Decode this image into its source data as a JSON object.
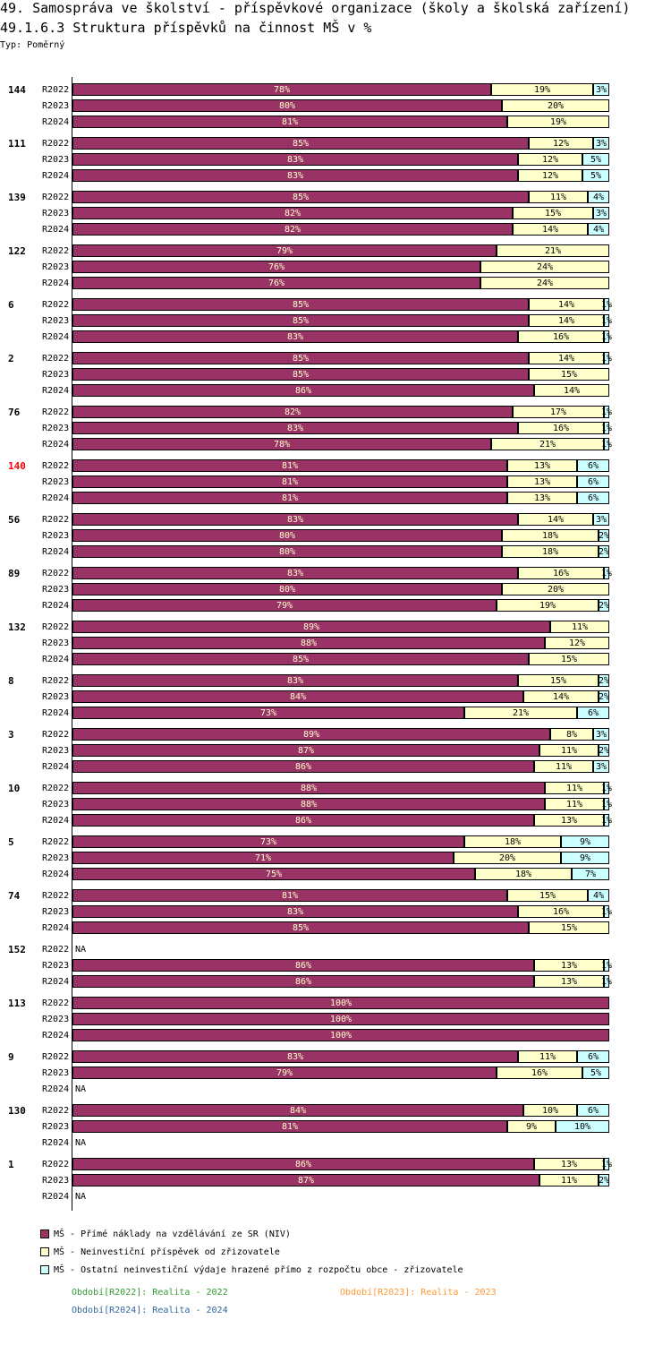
{
  "title": "49. Samospráva ve školství - příspěvkové organizace (školy a školská zařízení)",
  "subtitle": "49.1.6.3 Struktura příspěvků na činnost MŠ v %",
  "type_label": "Typ: Poměrný",
  "colors": {
    "s1": "#993366",
    "s2": "#ffffcc",
    "s3": "#ccffff",
    "highlight": "#ff0000"
  },
  "chart_data": {
    "type": "bar",
    "orientation": "horizontal",
    "stacked": true,
    "unit": "%",
    "xlim": [
      0,
      100
    ],
    "series_names": [
      "MŠ - Přímé náklady na vzdělávání ze SR (NIV)",
      "MŠ - Neinvestiční příspěvek od zřizovatele",
      "MŠ - Ostatní neinvestiční výdaje hrazené přímo z rozpočtu obce - zřizovatele"
    ],
    "groups": [
      {
        "label": "144",
        "rows": [
          [
            "R2022",
            78,
            19,
            3
          ],
          [
            "R2023",
            80,
            20,
            0
          ],
          [
            "R2024",
            81,
            19,
            0
          ]
        ]
      },
      {
        "label": "111",
        "rows": [
          [
            "R2022",
            85,
            12,
            3
          ],
          [
            "R2023",
            83,
            12,
            5
          ],
          [
            "R2024",
            83,
            12,
            5
          ]
        ]
      },
      {
        "label": "139",
        "rows": [
          [
            "R2022",
            85,
            11,
            4
          ],
          [
            "R2023",
            82,
            15,
            3
          ],
          [
            "R2024",
            82,
            14,
            4
          ]
        ]
      },
      {
        "label": "122",
        "rows": [
          [
            "R2022",
            79,
            21,
            0
          ],
          [
            "R2023",
            76,
            24,
            0
          ],
          [
            "R2024",
            76,
            24,
            0
          ]
        ]
      },
      {
        "label": "6",
        "rows": [
          [
            "R2022",
            85,
            14,
            1
          ],
          [
            "R2023",
            85,
            14,
            1
          ],
          [
            "R2024",
            83,
            16,
            1
          ]
        ]
      },
      {
        "label": "2",
        "rows": [
          [
            "R2022",
            85,
            14,
            1
          ],
          [
            "R2023",
            85,
            15,
            0
          ],
          [
            "R2024",
            86,
            14,
            0
          ]
        ]
      },
      {
        "label": "76",
        "rows": [
          [
            "R2022",
            82,
            17,
            1
          ],
          [
            "R2023",
            83,
            16,
            1
          ],
          [
            "R2024",
            78,
            21,
            1
          ]
        ]
      },
      {
        "label": "140",
        "highlight": true,
        "rows": [
          [
            "R2022",
            81,
            13,
            6
          ],
          [
            "R2023",
            81,
            13,
            6
          ],
          [
            "R2024",
            81,
            13,
            6
          ]
        ]
      },
      {
        "label": "56",
        "rows": [
          [
            "R2022",
            83,
            14,
            3
          ],
          [
            "R2023",
            80,
            18,
            2
          ],
          [
            "R2024",
            80,
            18,
            2
          ]
        ]
      },
      {
        "label": "89",
        "rows": [
          [
            "R2022",
            83,
            16,
            1
          ],
          [
            "R2023",
            80,
            20,
            0
          ],
          [
            "R2024",
            79,
            19,
            2
          ]
        ]
      },
      {
        "label": "132",
        "rows": [
          [
            "R2022",
            89,
            11,
            0
          ],
          [
            "R2023",
            88,
            12,
            0
          ],
          [
            "R2024",
            85,
            15,
            0
          ]
        ]
      },
      {
        "label": "8",
        "rows": [
          [
            "R2022",
            83,
            15,
            2
          ],
          [
            "R2023",
            84,
            14,
            2
          ],
          [
            "R2024",
            73,
            21,
            6
          ]
        ]
      },
      {
        "label": "3",
        "rows": [
          [
            "R2022",
            89,
            8,
            3
          ],
          [
            "R2023",
            87,
            11,
            2
          ],
          [
            "R2024",
            86,
            11,
            3
          ]
        ]
      },
      {
        "label": "10",
        "rows": [
          [
            "R2022",
            88,
            11,
            1
          ],
          [
            "R2023",
            88,
            11,
            1
          ],
          [
            "R2024",
            86,
            13,
            1
          ]
        ]
      },
      {
        "label": "5",
        "rows": [
          [
            "R2022",
            73,
            18,
            9
          ],
          [
            "R2023",
            71,
            20,
            9
          ],
          [
            "R2024",
            75,
            18,
            7
          ]
        ]
      },
      {
        "label": "74",
        "rows": [
          [
            "R2022",
            81,
            15,
            4
          ],
          [
            "R2023",
            83,
            16,
            1
          ],
          [
            "R2024",
            85,
            15,
            0
          ]
        ]
      },
      {
        "label": "152",
        "rows": [
          [
            "R2022",
            null,
            null,
            null
          ],
          [
            "R2023",
            86,
            13,
            1
          ],
          [
            "R2024",
            86,
            13,
            1
          ]
        ]
      },
      {
        "label": "113",
        "rows": [
          [
            "R2022",
            100,
            0,
            0
          ],
          [
            "R2023",
            100,
            0,
            0
          ],
          [
            "R2024",
            100,
            0,
            0
          ]
        ]
      },
      {
        "label": "9",
        "rows": [
          [
            "R2022",
            83,
            11,
            6
          ],
          [
            "R2023",
            79,
            16,
            5
          ],
          [
            "R2024",
            null,
            null,
            null
          ]
        ]
      },
      {
        "label": "130",
        "rows": [
          [
            "R2022",
            84,
            10,
            6
          ],
          [
            "R2023",
            81,
            9,
            10
          ],
          [
            "R2024",
            null,
            null,
            null
          ]
        ]
      },
      {
        "label": "1",
        "rows": [
          [
            "R2022",
            86,
            13,
            1
          ],
          [
            "R2023",
            87,
            11,
            2
          ],
          [
            "R2024",
            null,
            null,
            null
          ]
        ]
      }
    ],
    "na_label": "NA",
    "legend": [
      "MŠ - Přímé náklady na vzdělávání ze SR (NIV)",
      "MŠ - Neinvestiční příspěvek od zřizovatele",
      "MŠ - Ostatní neinvestiční výdaje hrazené přímo z rozpočtu obce - zřizovatele"
    ],
    "periods": [
      {
        "text": "Období[R2022]: Realita - 2022",
        "color": "#339933"
      },
      {
        "text": "Období[R2023]: Realita - 2023",
        "color": "#ff9933"
      },
      {
        "text": "Období[R2024]: Realita - 2024",
        "color": "#336699"
      }
    ]
  }
}
